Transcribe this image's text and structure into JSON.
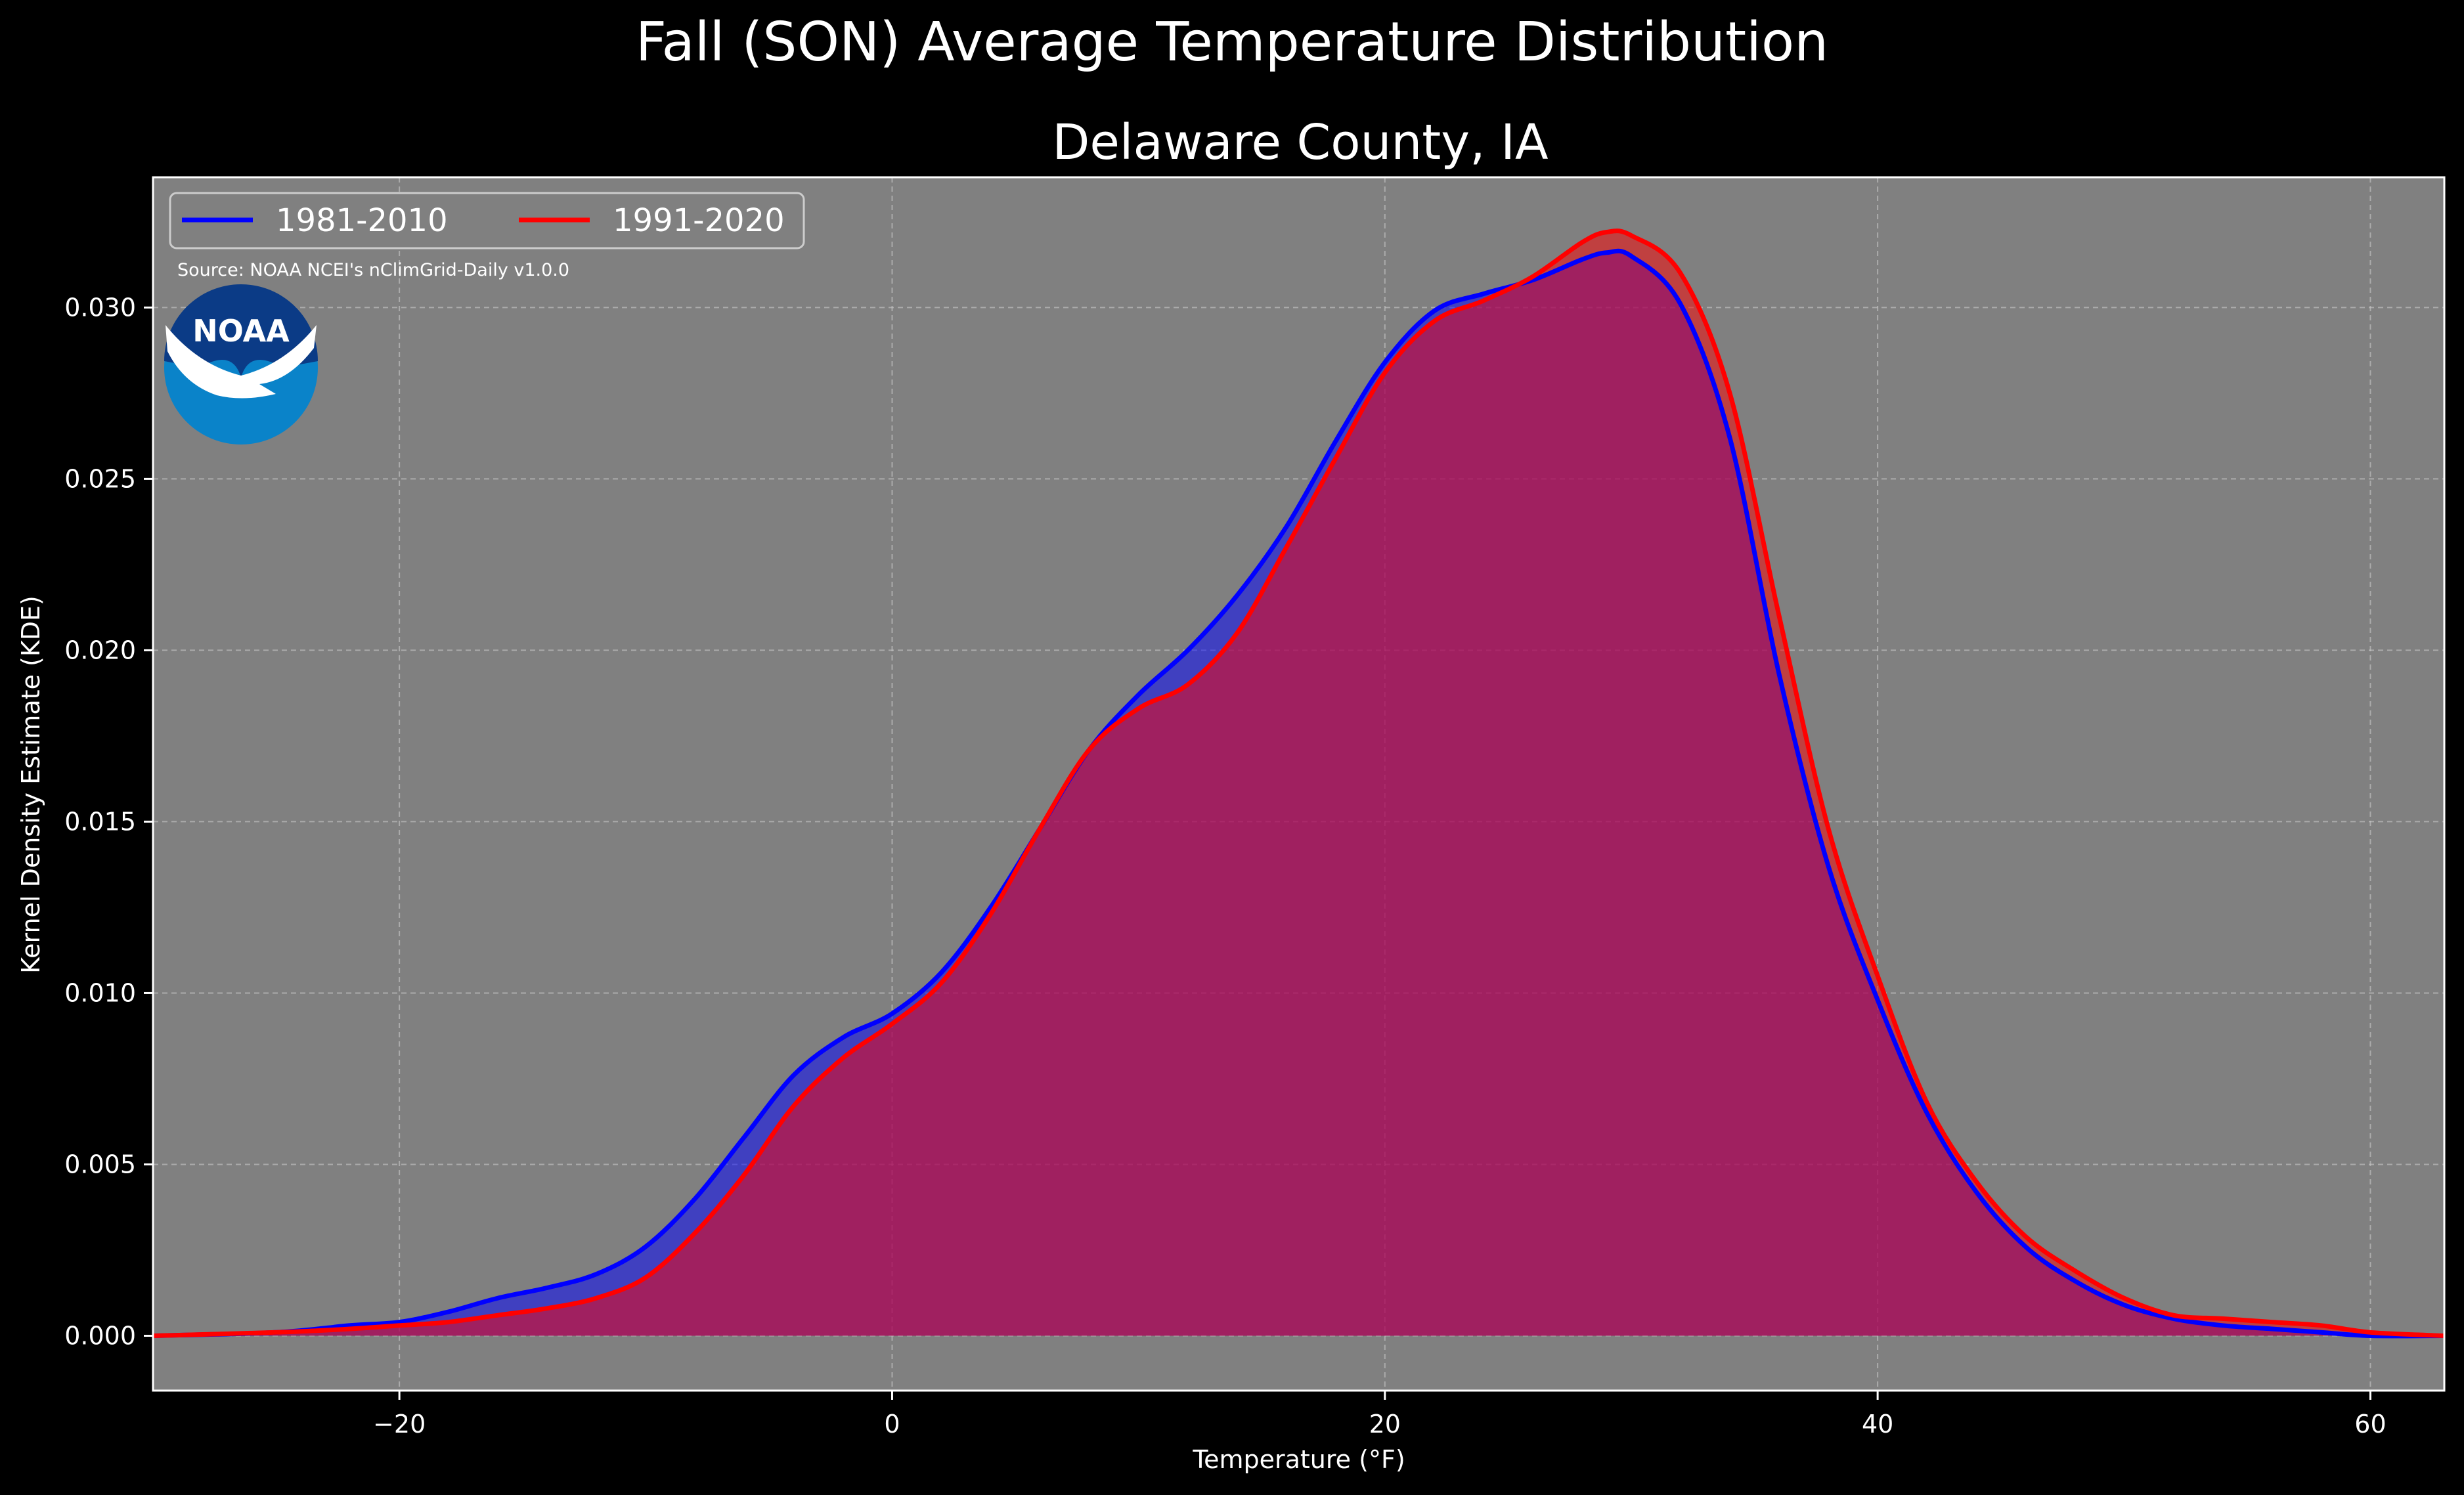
{
  "figure": {
    "suptitle": "Fall (SON) Average Temperature Distribution",
    "source": "Source: NOAA NCEI's nClimGrid-Daily v1.0.0",
    "logo_text": "NOAA",
    "colors": {
      "figure_bg": "#000000",
      "axes_bg": "#808080",
      "series_1": "#0000ff",
      "series_2": "#ff0000",
      "grid": "#c8c8c8"
    }
  },
  "chart_data": {
    "type": "area",
    "title": "Delaware County, IA",
    "xlabel": "Temperature ($^\\circ$F)",
    "xlabel_display": "Temperature (°F)",
    "ylabel": "Kernel Density Estimate (KDE)",
    "xlim": [
      -30,
      63
    ],
    "ylim": [
      -0.0016,
      0.0338
    ],
    "xticks": [
      -20,
      0,
      20,
      40,
      60
    ],
    "xtick_labels": [
      "−20",
      "0",
      "20",
      "40",
      "60"
    ],
    "yticks": [
      0.0,
      0.005,
      0.01,
      0.015,
      0.02,
      0.025,
      0.03
    ],
    "ytick_labels": [
      "0.000",
      "0.005",
      "0.010",
      "0.015",
      "0.020",
      "0.025",
      "0.030"
    ],
    "grid": true,
    "legend_position": "top-left",
    "series": [
      {
        "name": "1981-2010",
        "color": "#0000ff",
        "x": [
          -30,
          -25,
          -22,
          -20,
          -18,
          -16,
          -14,
          -12,
          -10,
          -8,
          -6,
          -4,
          -2,
          0,
          2,
          4,
          6,
          8,
          10,
          12,
          14,
          16,
          18,
          20,
          22,
          24,
          26,
          28,
          29,
          30,
          32,
          34,
          36,
          38,
          40,
          42,
          44,
          46,
          48,
          50,
          52,
          54,
          56,
          58,
          60,
          63
        ],
        "y": [
          0.0,
          0.0001,
          0.0003,
          0.0004,
          0.0007,
          0.0011,
          0.0014,
          0.0018,
          0.0026,
          0.004,
          0.0058,
          0.0076,
          0.0087,
          0.0094,
          0.0106,
          0.0125,
          0.0148,
          0.0171,
          0.0187,
          0.02,
          0.0216,
          0.0236,
          0.0261,
          0.0284,
          0.0299,
          0.0304,
          0.0308,
          0.0314,
          0.0316,
          0.0315,
          0.0301,
          0.0262,
          0.0193,
          0.0137,
          0.0098,
          0.0065,
          0.0042,
          0.0026,
          0.0016,
          0.0009,
          0.0005,
          0.0003,
          0.0002,
          0.0001,
          0.0,
          0.0
        ]
      },
      {
        "name": "1991-2020",
        "color": "#ff0000",
        "x": [
          -30,
          -25,
          -22,
          -20,
          -18,
          -16,
          -14,
          -12,
          -10,
          -8,
          -6,
          -4,
          -2,
          0,
          2,
          4,
          6,
          8,
          10,
          12,
          14,
          16,
          18,
          20,
          22,
          24,
          26,
          28,
          29,
          30,
          32,
          34,
          36,
          38,
          40,
          42,
          44,
          46,
          48,
          50,
          52,
          54,
          56,
          58,
          60,
          63
        ],
        "y": [
          0.0,
          0.0001,
          0.0002,
          0.0003,
          0.0004,
          0.0006,
          0.0008,
          0.0011,
          0.0017,
          0.003,
          0.0047,
          0.0067,
          0.0081,
          0.0091,
          0.0103,
          0.0123,
          0.0148,
          0.0171,
          0.0183,
          0.019,
          0.0205,
          0.023,
          0.0256,
          0.0281,
          0.0296,
          0.0302,
          0.0309,
          0.0319,
          0.0322,
          0.0321,
          0.031,
          0.0275,
          0.021,
          0.0148,
          0.0105,
          0.0068,
          0.0045,
          0.0029,
          0.0019,
          0.0011,
          0.0006,
          0.0005,
          0.0004,
          0.0003,
          0.0001,
          0.0
        ]
      }
    ]
  }
}
